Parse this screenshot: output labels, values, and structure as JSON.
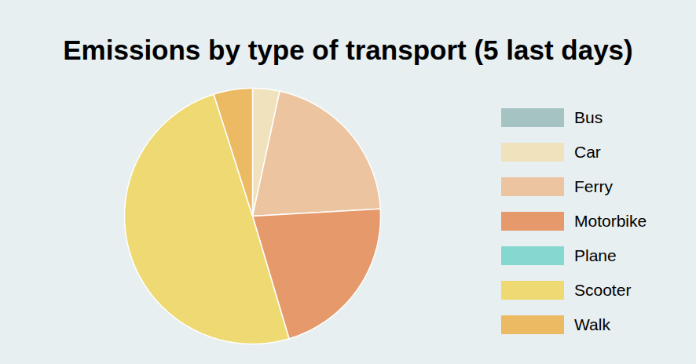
{
  "chart_data": {
    "type": "pie",
    "title": "Emissions by type of transport (5 last days)",
    "categories": [
      "Bus",
      "Car",
      "Ferry",
      "Motorbike",
      "Plane",
      "Scooter",
      "Walk"
    ],
    "values": [
      0,
      3.4,
      20.7,
      21.3,
      0,
      49.7,
      4.9
    ],
    "colors": [
      "#a5c3c2",
      "#f0e2bd",
      "#ecc4a0",
      "#e6996a",
      "#85d8cf",
      "#eed973",
      "#ebba62"
    ],
    "legend": "right"
  }
}
